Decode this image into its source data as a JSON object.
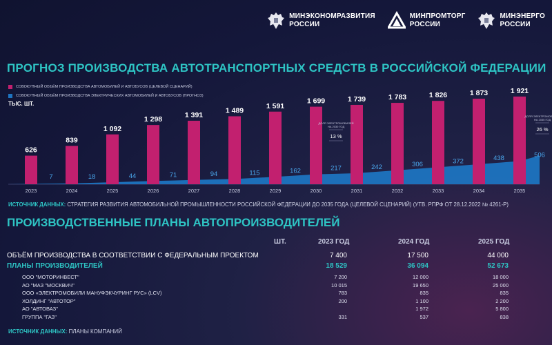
{
  "logos": [
    {
      "line1": "МИНЭКОНОМРАЗВИТИЯ",
      "line2": "РОССИИ",
      "icon": "eagle-emblem"
    },
    {
      "line1": "МИНПРОМТОРГ",
      "line2": "РОССИИ",
      "icon": "triangle-logo"
    },
    {
      "line1": "МИНЭНЕРГО",
      "line2": "РОССИИ",
      "icon": "eagle-emblem"
    }
  ],
  "title1": "ПРОГНОЗ ПРОИЗВОДСТВА АВТОТРАНСПОРТНЫХ СРЕДСТВ В РОССИЙСКОЙ ФЕДЕРАЦИИ",
  "unit": "ТЫС. ШТ.",
  "colors": {
    "total": "#c2206f",
    "electric": "#1e74c0",
    "accent": "#2ec4c4"
  },
  "chart_data": {
    "type": "bar",
    "categories": [
      "2023",
      "2024",
      "2025",
      "2026",
      "2027",
      "2028",
      "2029",
      "2030",
      "2031",
      "2032",
      "2033",
      "2034",
      "2035"
    ],
    "series": [
      {
        "name": "СОВОКУПНЫЙ ОБЪЁМ ПРОИЗВОДСТВА АВТОМОБИЛЕЙ И АВТОБУСОВ (ЦЕЛЕВОЙ СЦЕНАРИЙ)",
        "values": [
          626,
          839,
          1092,
          1298,
          1391,
          1489,
          1591,
          1699,
          1739,
          1783,
          1826,
          1873,
          1921
        ]
      },
      {
        "name": "СОВОКУПНЫЙ ОБЪЁМ ПРОИЗВОДСТВА ЭЛЕКТРИЧЕСКИХ АВТОМОБИЛЕЙ И АВТОБУСОВ (ПРОГНОЗ)",
        "values": [
          7,
          18,
          44,
          71,
          94,
          115,
          162,
          217,
          242,
          306,
          372,
          438,
          506
        ]
      }
    ],
    "ylabel": "ТЫС. ШТ.",
    "annotations": [
      {
        "year": "2030",
        "text": "ДОЛЯ ЭЛЕКТРОМОБИЛЕЙ НА 2030 ГОД",
        "value": "13 %"
      },
      {
        "year": "2035",
        "text": "ДОЛЯ ЭЛЕКТРОМОБИЛЕЙ НА 2035 ГОД",
        "value": "26 %"
      }
    ],
    "ylim": [
      0,
      2000
    ]
  },
  "source1_label": "ИСТОЧНИК ДАННЫХ:",
  "source1_text": "СТРАТЕГИЯ РАЗВИТИЯ АВТОМОБИЛЬНОЙ ПРОМЫШЛЕННОСТИ РОССИЙСКОЙ ФЕДЕРАЦИИ ДО 2035 ГОДА (ЦЕЛЕВОЙ СЦЕНАРИЙ) (УТВ. РПРФ ОТ 28.12.2022 № 4261-Р)",
  "title2": "ПРОИЗВОДСТВЕННЫЕ ПЛАНЫ АВТОПРОИЗВОДИТЕЛЕЙ",
  "table": {
    "unit": "ШТ.",
    "years": [
      "2023 ГОД",
      "2024 ГОД",
      "2025 ГОД"
    ],
    "federal": {
      "label": "ОБЪЁМ ПРОИЗВОДСТВА В СООТВЕТСТВИИ С ФЕДЕРАЛЬНЫМ ПРОЕКТОМ",
      "values": [
        "7 400",
        "17 500",
        "44 000"
      ]
    },
    "plans": {
      "label": "ПЛАНЫ ПРОИЗВОДИТЕЛЕЙ",
      "values": [
        "18 529",
        "36 094",
        "52 673"
      ]
    },
    "companies": [
      {
        "name": "ООО \"МОТОРИНВЕСТ\"",
        "values": [
          "7 200",
          "12 000",
          "18 000"
        ]
      },
      {
        "name": "АО \"МАЗ \"МОСКВИЧ\"",
        "values": [
          "10 015",
          "19 650",
          "25 000"
        ]
      },
      {
        "name": "ООО «ЭЛЕКТРОМОБИЛИ МАНУФЭКЧУРИНГ РУС» (LCV)",
        "values": [
          "783",
          "835",
          "835"
        ]
      },
      {
        "name": "ХОЛДИНГ \"АВТОТОР\"",
        "values": [
          "200",
          "1 100",
          "2 200"
        ]
      },
      {
        "name": "АО \"АВТОВАЗ\"",
        "values": [
          "",
          "1 972",
          "5 800"
        ]
      },
      {
        "name": "ГРУППА \"ГАЗ\"",
        "values": [
          "331",
          "537",
          "838"
        ]
      }
    ]
  },
  "source2_label": "ИСТОЧНИК ДАННЫХ:",
  "source2_text": "ПЛАНЫ КОМПАНИЙ"
}
